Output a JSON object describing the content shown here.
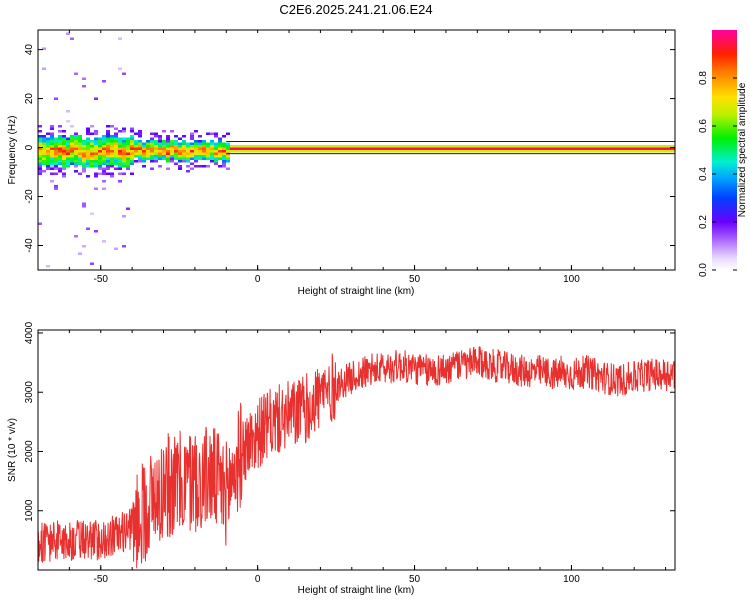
{
  "page_title": "C2E6.2025.241.21.06.E24",
  "colors": {
    "snr_line": "#e8302e",
    "axis": "#000000",
    "background": "#ffffff"
  },
  "chart_data": [
    {
      "type": "heatmap",
      "title": "C2E6.2025.241.21.06.E24",
      "xlabel": "Height of straight line (km)",
      "ylabel": "Frequency (Hz)",
      "xlim": [
        -70,
        133
      ],
      "ylim": [
        -50,
        48
      ],
      "xticks": [
        -50,
        0,
        50,
        100
      ],
      "yticks": [
        -40,
        -20,
        0,
        20,
        40
      ],
      "colorbar": {
        "label": "Normalized spectral amplitude",
        "range": [
          0,
          1
        ],
        "ticks": [
          0.0,
          0.2,
          0.4,
          0.6,
          0.8
        ],
        "colormap": "rainbow (white-violet-blue-cyan-green-yellow-orange-red-magenta)"
      },
      "series": [
        {
          "name": "carrier_band",
          "center_frequency_hz": 0,
          "amplitude_note": "strong narrow band near 0 Hz above ~0 km; broader, noisier band below ~-10 km"
        }
      ]
    },
    {
      "type": "line",
      "xlabel": "Height of straight line (km)",
      "ylabel": "SNR (10 * v/v)",
      "xlim": [
        -70,
        133
      ],
      "ylim": [
        0,
        4050
      ],
      "xticks": [
        -50,
        0,
        50,
        100
      ],
      "yticks": [
        1000,
        2000,
        3000,
        4000
      ],
      "series": [
        {
          "name": "SNR",
          "x": [
            -70,
            -65,
            -60,
            -55,
            -50,
            -45,
            -40,
            -35,
            -30,
            -25,
            -20,
            -15,
            -10,
            -5,
            0,
            5,
            10,
            15,
            20,
            25,
            30,
            35,
            40,
            45,
            50,
            55,
            60,
            65,
            70,
            75,
            80,
            85,
            90,
            95,
            100,
            105,
            110,
            115,
            120,
            125,
            130,
            133
          ],
          "values": [
            450,
            500,
            480,
            520,
            500,
            600,
            700,
            1100,
            1400,
            1450,
            1500,
            1600,
            1300,
            2000,
            2300,
            2500,
            2600,
            2700,
            2950,
            3100,
            3250,
            3350,
            3400,
            3450,
            3400,
            3350,
            3400,
            3450,
            3500,
            3450,
            3400,
            3350,
            3350,
            3300,
            3300,
            3350,
            3250,
            3200,
            3250,
            3300,
            3300,
            3350
          ],
          "noise_note": "high-frequency fluctuations of roughly ±300-800 around the trend"
        }
      ]
    }
  ]
}
